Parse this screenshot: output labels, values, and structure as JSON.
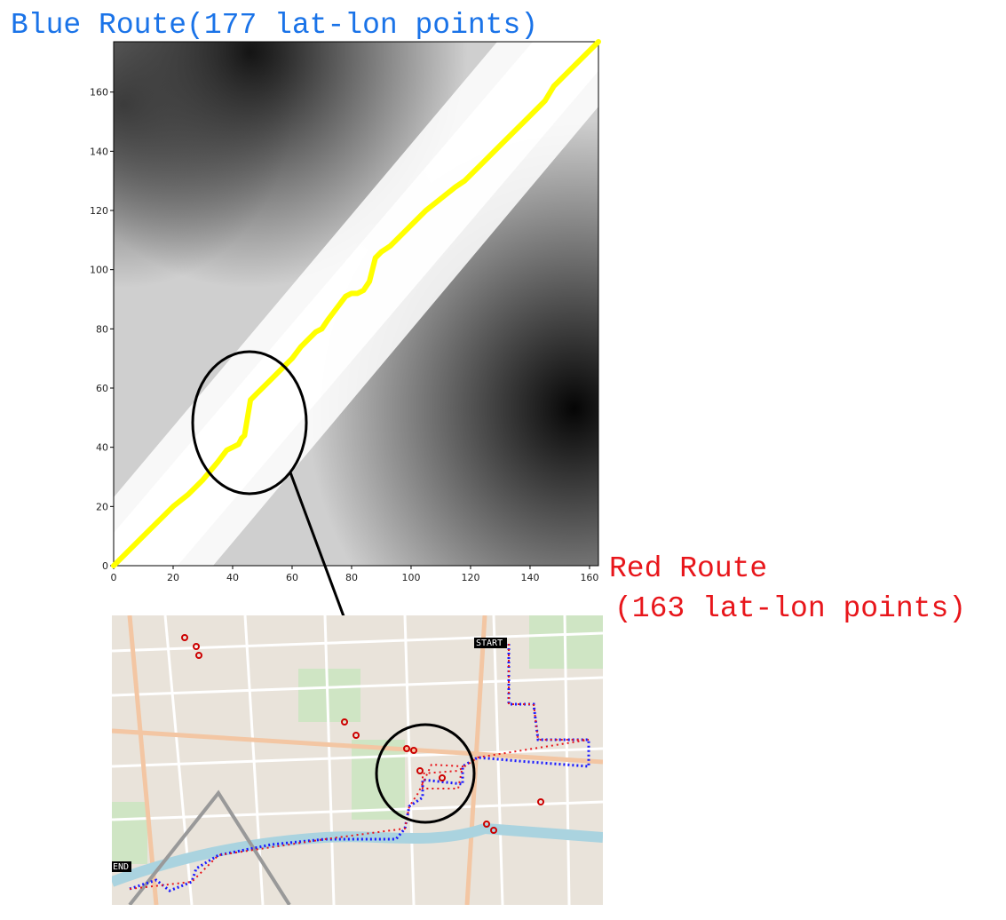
{
  "labels": {
    "blue_route": "Blue Route(177 lat-lon points)",
    "red_route_line1": "Red Route",
    "red_route_line2": "(163 lat-lon points)",
    "map_start": "START",
    "map_end": "END"
  },
  "colors": {
    "blue_route": "#1a73e8",
    "red_route": "#e8161b",
    "warp_path": "#ffff00",
    "highlight_circle": "#000000"
  },
  "chart_data": {
    "type": "heatmap",
    "colormap": "grayscale",
    "xlim": [
      0,
      163
    ],
    "ylim": [
      0,
      177
    ],
    "xticks": [
      0,
      20,
      40,
      60,
      80,
      100,
      120,
      140,
      160
    ],
    "yticks": [
      0,
      20,
      40,
      60,
      80,
      100,
      120,
      140,
      160
    ],
    "grid": false,
    "warp_path": {
      "name": "",
      "x": [
        0,
        10,
        20,
        25,
        30,
        35,
        38,
        40,
        42,
        43,
        44,
        45,
        46,
        48,
        52,
        56,
        60,
        63,
        65,
        68,
        70,
        72,
        75,
        78,
        80,
        82,
        84,
        86,
        88,
        90,
        93,
        96,
        100,
        105,
        110,
        115,
        118,
        120,
        125,
        130,
        135,
        140,
        145,
        148,
        150,
        155,
        160,
        163
      ],
      "y": [
        0,
        10,
        20,
        24,
        29,
        35,
        39,
        40,
        41,
        43,
        44,
        50,
        56,
        58,
        62,
        66,
        70,
        74,
        76,
        79,
        80,
        83,
        87,
        91,
        92,
        92,
        93,
        96,
        104,
        106,
        108,
        111,
        115,
        120,
        124,
        128,
        130,
        132,
        137,
        142,
        147,
        152,
        157,
        162,
        164,
        169,
        174,
        177
      ]
    }
  }
}
